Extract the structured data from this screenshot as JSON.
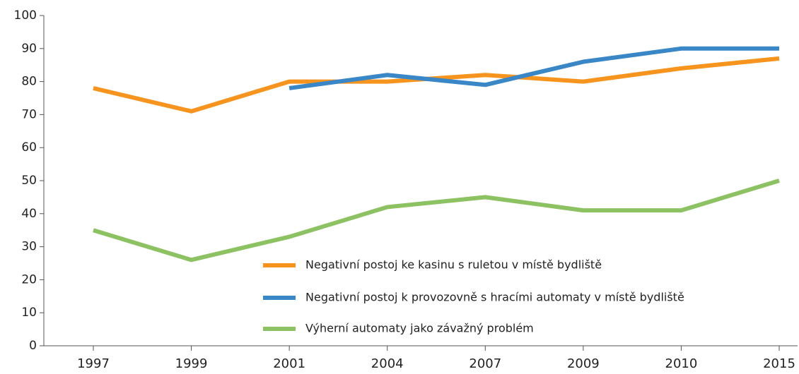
{
  "chart_data": {
    "type": "line",
    "categories": [
      "1997",
      "1999",
      "2001",
      "2004",
      "2007",
      "2009",
      "2010",
      "2015"
    ],
    "series": [
      {
        "name": "Negativní postoj ke kasinu s ruletou v místě bydliště",
        "color": "#f7941d",
        "values": [
          78,
          71,
          80,
          80,
          82,
          80,
          84,
          87
        ]
      },
      {
        "name": "Negativní postoj k provozovně s hracími automaty v místě bydliště",
        "color": "#3a87c8",
        "values": [
          null,
          null,
          78,
          82,
          79,
          86,
          90,
          90
        ]
      },
      {
        "name": "Výherní automaty jako závažný problém",
        "color": "#8dc263",
        "values": [
          35,
          26,
          33,
          42,
          45,
          41,
          41,
          50
        ]
      }
    ],
    "ylim": [
      0,
      100
    ],
    "yticks": [
      0,
      10,
      20,
      30,
      40,
      50,
      60,
      70,
      80,
      90,
      100
    ],
    "grid": false,
    "legend": "lower right"
  }
}
